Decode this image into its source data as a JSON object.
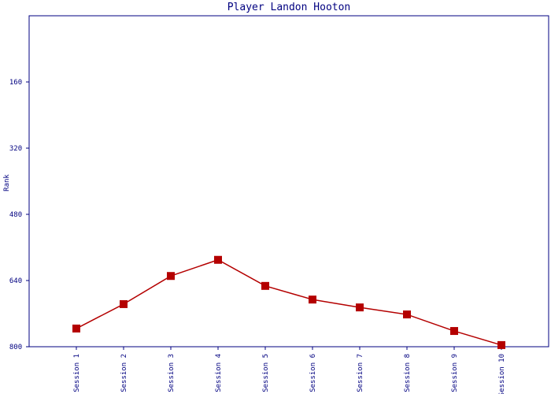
{
  "chart_data": {
    "type": "line",
    "title": "Player Landon Hooton",
    "y_label": "Rank",
    "categories": [
      "Session 1",
      "Session 2",
      "Session 3",
      "Session 4",
      "Session 5",
      "Session 6",
      "Session 7",
      "Session 8",
      "Session 9",
      "Session 10"
    ],
    "series": [
      {
        "name": "Rank",
        "color": "#b40000",
        "values": [
          756,
          697,
          629,
          590,
          653,
          686,
          705,
          722,
          762,
          796
        ]
      }
    ],
    "ylim": [
      0,
      800
    ],
    "y_inverted": true,
    "yticks": [
      160,
      320,
      480,
      640,
      800
    ],
    "axis_color": "#000080"
  }
}
